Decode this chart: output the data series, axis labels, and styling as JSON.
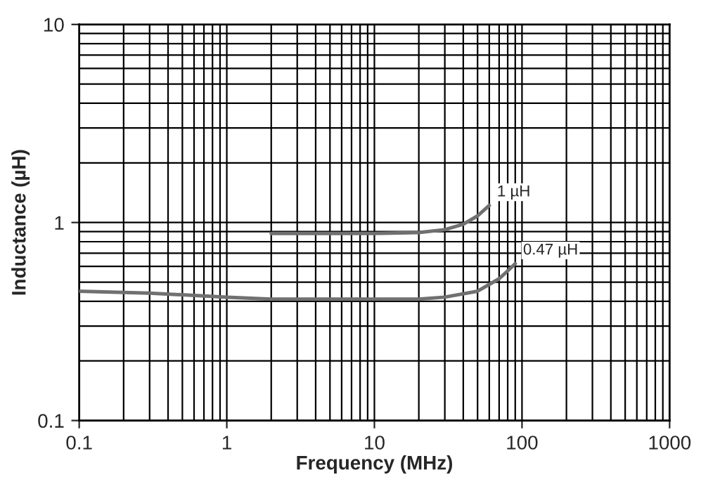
{
  "chart_data": {
    "type": "line",
    "xlabel": "Frequency (MHz)",
    "ylabel": "Inductance (µH)",
    "log": "xy",
    "xlim": [
      0.1,
      1000
    ],
    "ylim": [
      0.1,
      10
    ],
    "xticks": [
      0.1,
      1,
      10,
      100,
      1000
    ],
    "yticks": [
      0.1,
      1,
      10
    ],
    "grid": true,
    "legend": false,
    "marker": "none",
    "line_style": "solid",
    "series": [
      {
        "name": "1 µH",
        "color": "#707070",
        "x": [
          2,
          5,
          10,
          20,
          30,
          40,
          50,
          60
        ],
        "values": [
          0.88,
          0.88,
          0.88,
          0.89,
          0.92,
          0.98,
          1.08,
          1.22
        ]
      },
      {
        "name": "0.47 µH",
        "color": "#707070",
        "x": [
          0.1,
          0.3,
          1,
          2,
          5,
          10,
          20,
          30,
          50,
          70,
          80,
          90
        ],
        "values": [
          0.45,
          0.44,
          0.42,
          0.41,
          0.41,
          0.41,
          0.41,
          0.42,
          0.45,
          0.52,
          0.57,
          0.62
        ]
      }
    ]
  }
}
